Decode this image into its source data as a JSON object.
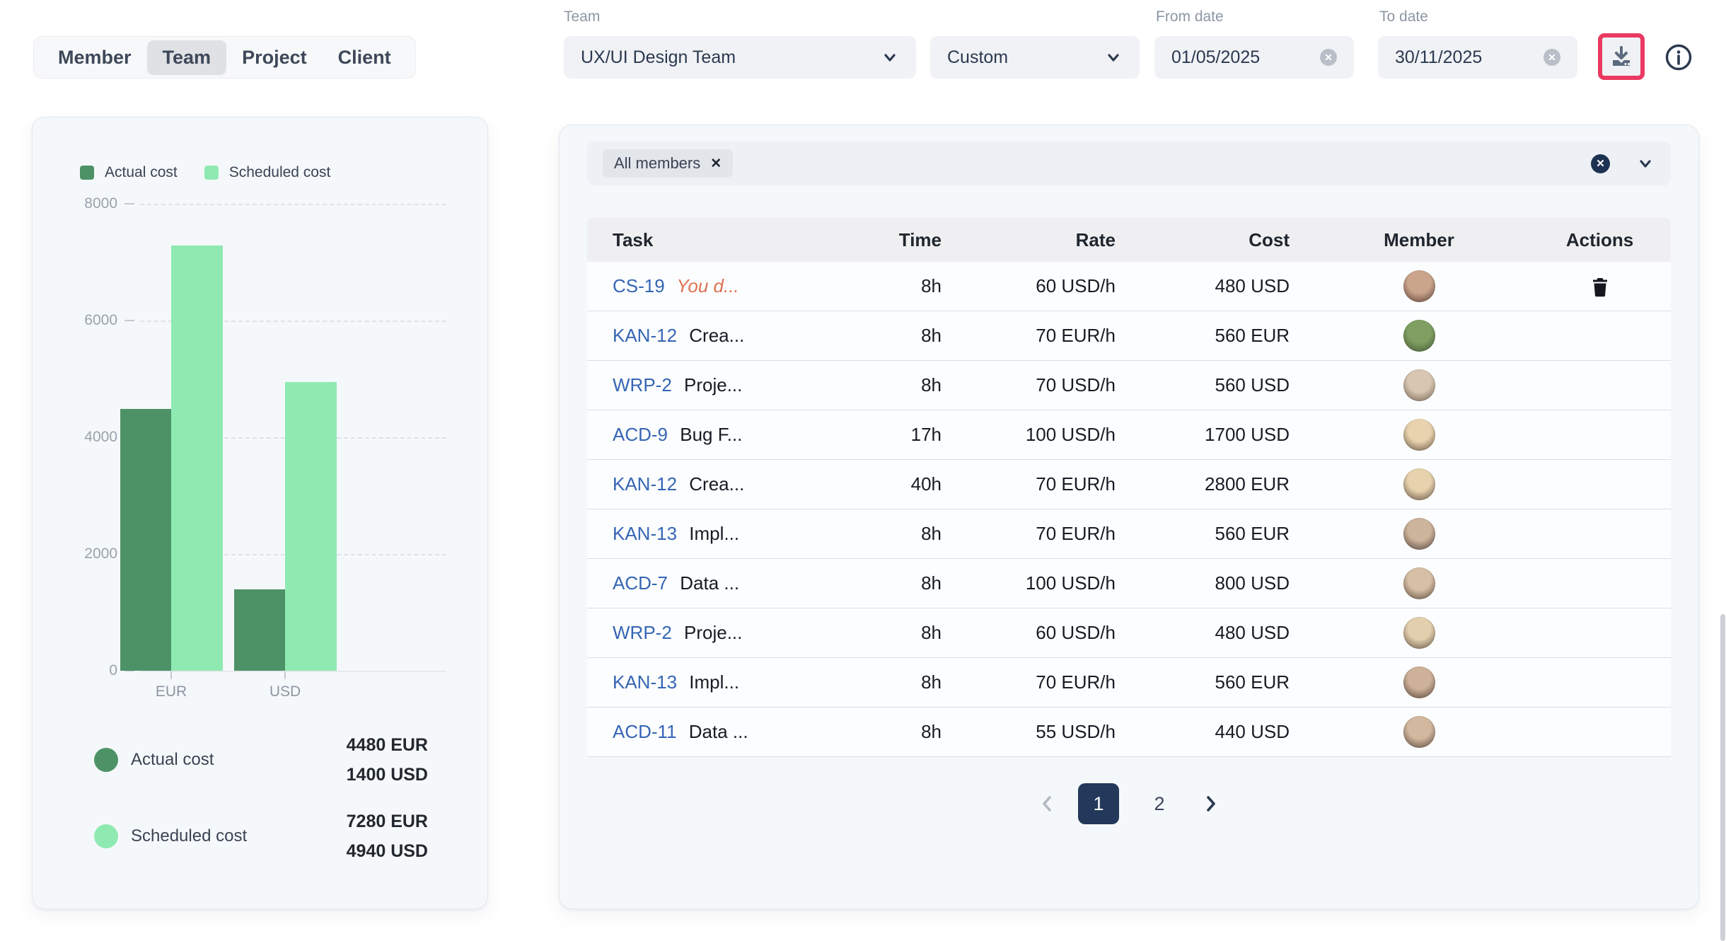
{
  "colors": {
    "accent_navy": "#23395b",
    "actual_green": "#4d9266",
    "scheduled_green": "#8feab2",
    "link_blue": "#3565b5",
    "alert_orange": "#dd7153",
    "highlight_pink": "#ea3a62"
  },
  "view_tabs": {
    "items": [
      {
        "label": "Member",
        "selected": false
      },
      {
        "label": "Team",
        "selected": true
      },
      {
        "label": "Project",
        "selected": false
      },
      {
        "label": "Client",
        "selected": false
      }
    ]
  },
  "filters": {
    "team": {
      "label": "Team",
      "value": "UX/UI Design Team"
    },
    "range": {
      "value": "Custom"
    },
    "from_date": {
      "label": "From date",
      "value": "01/05/2025",
      "clear_icon": "x-circle-icon"
    },
    "to_date": {
      "label": "To date",
      "value": "30/11/2025",
      "clear_icon": "x-circle-icon"
    }
  },
  "toolbar": {
    "download_icon": "download-icon",
    "download_highlighted": true,
    "info_icon": "info-icon"
  },
  "chart_data": {
    "type": "bar",
    "categories": [
      "EUR",
      "USD"
    ],
    "series": [
      {
        "name": "Actual cost",
        "color": "#4d9266",
        "values": [
          4480,
          1400
        ]
      },
      {
        "name": "Scheduled cost",
        "color": "#8feab2",
        "values": [
          7280,
          4940
        ]
      }
    ],
    "ylim": [
      0,
      8000
    ],
    "yticks": [
      0,
      2000,
      4000,
      6000,
      8000
    ],
    "grid": "horizontal-dashed",
    "legend_position": "top-left",
    "summary": [
      {
        "label": "Actual cost",
        "color": "#4d9266",
        "values": [
          "4480 EUR",
          "1400 USD"
        ]
      },
      {
        "label": "Scheduled cost",
        "color": "#8feab2",
        "values": [
          "7280 EUR",
          "4940 USD"
        ]
      }
    ]
  },
  "members_filter": {
    "chips": [
      {
        "label": "All members",
        "remove_icon": "x-icon"
      }
    ],
    "clear_all_icon": "x-circle-icon",
    "expand_icon": "chevron-down-icon"
  },
  "table": {
    "columns": [
      "Task",
      "Time",
      "Rate",
      "Cost",
      "Member",
      "Actions"
    ],
    "rows": [
      {
        "task_code": "CS-19",
        "task_title": "You d...",
        "alert": true,
        "time": "8h",
        "rate": "60 USD/h",
        "cost": "480 USD",
        "has_delete": true,
        "avatar_colors": [
          "#caa58c",
          "#53382f"
        ]
      },
      {
        "task_code": "KAN-12",
        "task_title": "Crea...",
        "alert": false,
        "time": "8h",
        "rate": "70 EUR/h",
        "cost": "560 EUR",
        "has_delete": false,
        "avatar_colors": [
          "#7fa062",
          "#41502f"
        ]
      },
      {
        "task_code": "WRP-2",
        "task_title": "Proje...",
        "alert": false,
        "time": "8h",
        "rate": "70 USD/h",
        "cost": "560 USD",
        "has_delete": false,
        "avatar_colors": [
          "#d8c6b2",
          "#6b5948"
        ]
      },
      {
        "task_code": "ACD-9",
        "task_title": "Bug F...",
        "alert": false,
        "time": "17h",
        "rate": "100 USD/h",
        "cost": "1700 USD",
        "has_delete": false,
        "avatar_colors": [
          "#e8d3ae",
          "#5d4a38"
        ]
      },
      {
        "task_code": "KAN-12",
        "task_title": "Crea...",
        "alert": false,
        "time": "40h",
        "rate": "70 EUR/h",
        "cost": "2800 EUR",
        "has_delete": false,
        "avatar_colors": [
          "#e6d2ad",
          "#58463a"
        ]
      },
      {
        "task_code": "KAN-13",
        "task_title": "Impl...",
        "alert": false,
        "time": "8h",
        "rate": "70 EUR/h",
        "cost": "560 EUR",
        "has_delete": false,
        "avatar_colors": [
          "#cdb49c",
          "#4a3a33"
        ]
      },
      {
        "task_code": "ACD-7",
        "task_title": "Data ...",
        "alert": false,
        "time": "8h",
        "rate": "100 USD/h",
        "cost": "800 USD",
        "has_delete": false,
        "avatar_colors": [
          "#d6bfa4",
          "#554238"
        ]
      },
      {
        "task_code": "WRP-2",
        "task_title": "Proje...",
        "alert": false,
        "time": "8h",
        "rate": "60 USD/h",
        "cost": "480 USD",
        "has_delete": false,
        "avatar_colors": [
          "#e2cfae",
          "#5a4a3c"
        ]
      },
      {
        "task_code": "KAN-13",
        "task_title": "Impl...",
        "alert": false,
        "time": "8h",
        "rate": "70 EUR/h",
        "cost": "560 EUR",
        "has_delete": false,
        "avatar_colors": [
          "#cdb199",
          "#4e3b32"
        ]
      },
      {
        "task_code": "ACD-11",
        "task_title": "Data ...",
        "alert": false,
        "time": "8h",
        "rate": "55 USD/h",
        "cost": "440 USD",
        "has_delete": false,
        "avatar_colors": [
          "#d2b89e",
          "#514036"
        ]
      }
    ]
  },
  "pagination": {
    "prev_icon": "chevron-left-icon",
    "prev_enabled": false,
    "pages": [
      {
        "label": "1",
        "active": true
      },
      {
        "label": "2",
        "active": false
      }
    ],
    "next_icon": "chevron-right-icon",
    "next_enabled": true
  }
}
